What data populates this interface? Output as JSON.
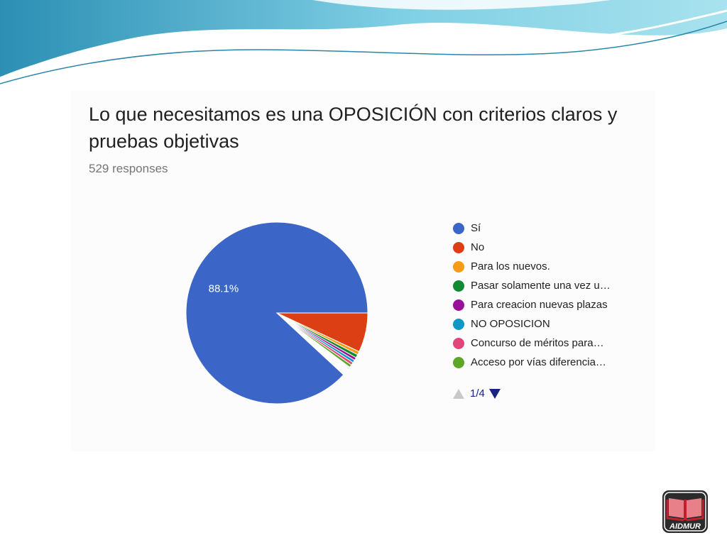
{
  "title": "Lo que necesitamos es una OPOSICIÓN con criterios claros y pruebas objetivas",
  "subtitle": "529 responses",
  "logo_text": "AIDMUR",
  "pager": {
    "text": "1/4"
  },
  "chart_data": {
    "type": "pie",
    "title": "Lo que necesitamos es una OPOSICIÓN con criterios claros y pruebas objetivas",
    "subtitle": "529 responses",
    "legend_position": "right",
    "slices": [
      {
        "label": "Sí",
        "value": 88.1,
        "color": "#3b66c8",
        "display": "88.1%"
      },
      {
        "label": "No",
        "value": 7.0,
        "color": "#dc3f13",
        "display": ""
      },
      {
        "label": "Para los nuevos.",
        "value": 0.6,
        "color": "#f59b16",
        "display": ""
      },
      {
        "label": "Pasar solamente una vez u…",
        "value": 0.6,
        "color": "#128a32",
        "display": ""
      },
      {
        "label": "Para creacion nuevas plazas",
        "value": 0.5,
        "color": "#9a0f9a",
        "display": ""
      },
      {
        "label": "NO OPOSICION",
        "value": 0.5,
        "color": "#0f97c6",
        "display": ""
      },
      {
        "label": "Concurso de méritos para…",
        "value": 0.5,
        "color": "#e0467a",
        "display": ""
      },
      {
        "label": "Acceso por vías diferencia…",
        "value": 0.5,
        "color": "#5da726",
        "display": ""
      },
      {
        "label": "",
        "value": 1.7,
        "color": "#ffffff",
        "display": ""
      }
    ]
  },
  "colors": {
    "wave_dark": "#2f97b8",
    "wave_light": "#8fd5e8",
    "card_bg": "#fcfcfc"
  }
}
